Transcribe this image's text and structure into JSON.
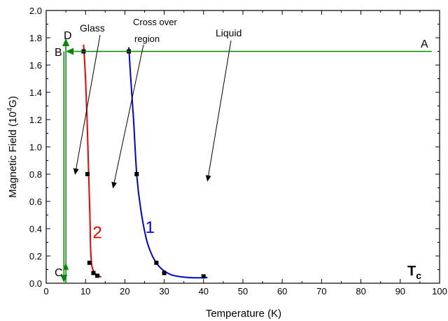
{
  "chart_data": {
    "type": "line",
    "title": "",
    "xlabel": "Temperature (K)",
    "ylabel_main": "Magnetic Field (10",
    "ylabel_sup": "4",
    "ylabel_end": "G)",
    "xlim": [
      0,
      100
    ],
    "ylim": [
      0.0,
      2.0
    ],
    "xticks": [
      0,
      10,
      20,
      30,
      40,
      50,
      60,
      70,
      80,
      90,
      100
    ],
    "yticks": [
      "0.0",
      "0.2",
      "0.4",
      "0.6",
      "0.8",
      "1.0",
      "1.2",
      "1.4",
      "1.6",
      "1.8",
      "2.0"
    ],
    "grid": false,
    "series": [
      {
        "name": "1",
        "color": "#0000dd",
        "curve": [
          [
            21,
            1.73
          ],
          [
            21.5,
            1.5
          ],
          [
            22.2,
            1.2
          ],
          [
            23,
            0.8
          ],
          [
            24,
            0.55
          ],
          [
            25.5,
            0.32
          ],
          [
            27,
            0.2
          ],
          [
            28.5,
            0.13
          ],
          [
            30,
            0.09
          ],
          [
            32,
            0.06
          ],
          [
            35,
            0.045
          ],
          [
            38,
            0.04
          ],
          [
            41,
            0.042
          ]
        ],
        "points": [
          [
            21,
            1.7
          ],
          [
            23,
            0.8
          ],
          [
            28,
            0.15
          ],
          [
            30,
            0.075
          ],
          [
            40,
            0.05
          ]
        ]
      },
      {
        "name": "2",
        "color": "#ee0000",
        "curve": [
          [
            9.5,
            1.75
          ],
          [
            10,
            1.5
          ],
          [
            10.4,
            1.2
          ],
          [
            10.8,
            0.8
          ],
          [
            11.1,
            0.5
          ],
          [
            11.3,
            0.25
          ],
          [
            11.6,
            0.13
          ],
          [
            12.2,
            0.08
          ],
          [
            13,
            0.06
          ],
          [
            14,
            0.045
          ]
        ],
        "points": [
          [
            9.5,
            1.7
          ],
          [
            10.5,
            0.8
          ],
          [
            11,
            0.15
          ],
          [
            12,
            0.075
          ],
          [
            13,
            0.055
          ]
        ]
      }
    ],
    "paths": {
      "color": "#008800",
      "A_to_B": [
        [
          98,
          1.7
        ],
        [
          5,
          1.7
        ]
      ],
      "C_to_D": [
        [
          5,
          0.0
        ],
        [
          5,
          1.8
        ]
      ],
      "B_to_C": [
        [
          4.5,
          1.7
        ],
        [
          4.5,
          0.0
        ]
      ]
    },
    "annotations": [
      {
        "text": "Glass",
        "anchor": [
          13,
          1.86
        ],
        "tip": [
          7,
          0.8
        ]
      },
      {
        "text": "Cross over",
        "anchor": [
          21.5,
          1.9
        ],
        "tip": [
          17,
          0.7
        ]
      },
      {
        "text": "region",
        "anchor": [
          27,
          1.76
        ],
        "tip": [
          17,
          0.7
        ]
      },
      {
        "text": "Liquid",
        "anchor": [
          37,
          1.77
        ],
        "tip": [
          41,
          0.75
        ]
      }
    ],
    "point_labels": {
      "A": "A",
      "B": "B",
      "C": "C",
      "D": "D"
    },
    "tc_main": "T",
    "tc_sub": "c"
  }
}
